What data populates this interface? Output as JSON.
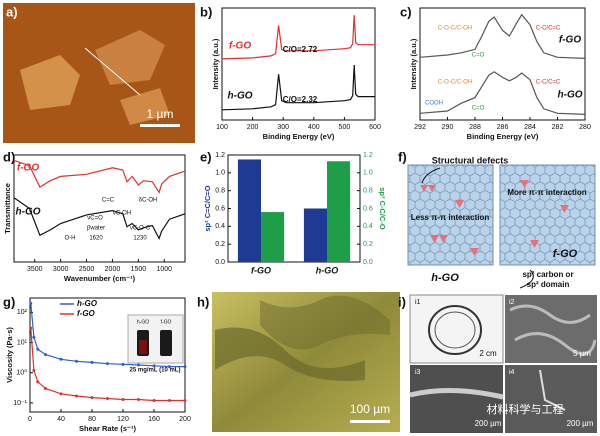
{
  "panels": {
    "a": {
      "label": "a)",
      "scale": "1 µm"
    },
    "b": {
      "label": "b)"
    },
    "c": {
      "label": "c)"
    },
    "d": {
      "label": "d)"
    },
    "e": {
      "label": "e)"
    },
    "f": {
      "label": "f)",
      "texts": [
        "Structural defects",
        "Less π-π interaction",
        "More π-π interaction",
        "h-GO",
        "f-GO",
        "sp² carbon or",
        "sp² domain"
      ]
    },
    "g": {
      "label": "g)",
      "inset": [
        "h-GO",
        "f-GO",
        "25 mg/mL (10 mL)"
      ]
    },
    "h": {
      "label": "h)",
      "scale": "100 µm"
    },
    "i": {
      "label": "i)",
      "subs": [
        "i1",
        "i2",
        "i3",
        "i4"
      ],
      "scales": [
        "2 cm",
        "5 µm",
        "200 µm",
        "200 µm"
      ],
      "watermark": "材料科学与工程"
    }
  },
  "chart_data": [
    {
      "type": "line",
      "xlabel": "Binding Energy (eV)",
      "ylabel": "Intensity (a.u.)",
      "x": [
        100,
        200,
        260,
        275,
        285,
        295,
        310,
        400,
        500,
        520,
        527,
        532,
        537,
        545,
        600
      ],
      "xlim": [
        100,
        600
      ],
      "xticks": [
        100,
        200,
        300,
        400,
        500,
        600
      ],
      "ylim": [
        0,
        11
      ],
      "series": [
        {
          "name": "f-GO",
          "color": "#e03030",
          "values": [
            6,
            6.1,
            6.3,
            6.5,
            9.3,
            6.9,
            6.8,
            6.8,
            7,
            7.1,
            7.5,
            10.3,
            7.6,
            7.4,
            7.4
          ]
        },
        {
          "name": "h-GO",
          "color": "#111111",
          "values": [
            1,
            1.1,
            1.3,
            1.5,
            4.5,
            1.9,
            1.7,
            1.7,
            1.9,
            2,
            2.4,
            5.4,
            2.5,
            2.3,
            2.3
          ]
        }
      ],
      "annotations": [
        "C/O=2.72",
        "C/O=2.32"
      ]
    },
    {
      "type": "line",
      "xlabel": "Binding Energy (eV)",
      "ylabel": "Intensity (a.u.)",
      "x": [
        292,
        290,
        289,
        288,
        287.5,
        287,
        286.6,
        286,
        285.5,
        285,
        284.6,
        284,
        283.5,
        283,
        282,
        280
      ],
      "xlim": [
        292,
        280
      ],
      "xticks": [
        292,
        290,
        288,
        286,
        284,
        282,
        280
      ],
      "ylim": [
        0,
        10
      ],
      "series": [
        {
          "name": "f-GO",
          "color": "#555555",
          "values": [
            5.6,
            5.8,
            6,
            6.3,
            7.5,
            8.8,
            9.2,
            8,
            7.5,
            8.6,
            9.4,
            8.5,
            7,
            6,
            5.6,
            5.5
          ]
        },
        {
          "name": "h-GO",
          "color": "#555555",
          "values": [
            0.6,
            0.8,
            1.5,
            2,
            3,
            4,
            4.3,
            3.8,
            3.5,
            3.8,
            4.2,
            3.6,
            2,
            1,
            0.6,
            0.5
          ]
        }
      ],
      "annotations": [
        "C-O-C/C-OH",
        "C-C/C=C",
        "C=O",
        "C-O-C/C-OH",
        "C-C/C=C",
        "COOH",
        "C=O"
      ]
    },
    {
      "type": "line",
      "xlabel": "Wavenumber (cm⁻¹)",
      "ylabel": "Transmittance",
      "x": [
        3900,
        3600,
        3400,
        3200,
        3000,
        2500,
        2000,
        1800,
        1720,
        1620,
        1500,
        1400,
        1230,
        1100,
        1050,
        900,
        600
      ],
      "xlim": [
        3900,
        600
      ],
      "xticks": [
        3500,
        3000,
        2500,
        2000,
        1500,
        1000
      ],
      "ylim": [
        0,
        10
      ],
      "series": [
        {
          "name": "f-GO",
          "color": "#e03030",
          "values": [
            9.5,
            9,
            7,
            7.6,
            8,
            8.2,
            8.8,
            8.6,
            7.5,
            8,
            7.2,
            7.6,
            7.5,
            6.5,
            7.3,
            8,
            8.5
          ]
        },
        {
          "name": "h-GO",
          "color": "#111111",
          "values": [
            6,
            5,
            2.5,
            3,
            3.6,
            4.4,
            4.8,
            4.5,
            3.3,
            3.6,
            3,
            3.2,
            3.4,
            2.2,
            2.9,
            4,
            4.5
          ]
        }
      ],
      "annotations": [
        "O-H",
        "C=C",
        "δC-OH",
        "νC-OH",
        "νC=O",
        "βwater",
        "1620",
        "νC-O-C",
        "1230"
      ]
    },
    {
      "type": "bar",
      "ylabel": "sp² C=C/C=O",
      "y2label": "sp³ C-C/C-O",
      "categories": [
        "f-GO",
        "h-GO"
      ],
      "ylim": [
        0,
        1.2
      ],
      "yticks": [
        {
          "value": 0,
          "label": "0.0"
        },
        0.2,
        0.4,
        0.6,
        0.8,
        {
          "value": 1,
          "label": "1.0"
        },
        1.2
      ],
      "y2lim": [
        0,
        1.2
      ],
      "y2ticks": [
        {
          "value": 0,
          "label": "0.0"
        },
        0.2,
        0.4,
        0.6,
        0.8,
        {
          "value": 1,
          "label": "1.0"
        },
        1.2
      ],
      "series": [
        {
          "name": "sp² C=C/C=O",
          "color": "#1f3a93",
          "values": [
            1.15,
            0.6
          ]
        },
        {
          "name": "sp³ C-C/C-O",
          "color": "#1e9e48",
          "values": [
            0.56,
            1.13
          ],
          "axis": "y2"
        }
      ]
    },
    {
      "type": "line",
      "xlabel": "Shear Rate (s⁻¹)",
      "ylabel": "Viscosity (Pa·s)",
      "log_y": true,
      "legend": "upper left",
      "x": [
        1,
        5,
        10,
        20,
        40,
        60,
        80,
        100,
        120,
        140,
        160,
        180,
        200
      ],
      "xlim": [
        0,
        200
      ],
      "xticks": [
        0,
        40,
        80,
        120,
        160,
        200
      ],
      "ylim": [
        0.05,
        300
      ],
      "yticks": [
        {
          "value": 0.1,
          "label": "10⁻¹"
        },
        {
          "value": 1,
          "label": "10⁰"
        },
        {
          "value": 10,
          "label": "10¹"
        },
        {
          "value": 100,
          "label": "10²"
        }
      ],
      "series": [
        {
          "name": "h-GO",
          "color": "#2f5fd0",
          "values": [
            200,
            15,
            6,
            4,
            2.8,
            2.4,
            2.2,
            2,
            1.9,
            1.8,
            1.7,
            1.6,
            1.6
          ]
        },
        {
          "name": "f-GO",
          "color": "#e03030",
          "values": [
            30,
            1.2,
            0.5,
            0.3,
            0.2,
            0.17,
            0.15,
            0.14,
            0.13,
            0.13,
            0.12,
            0.12,
            0.12
          ]
        }
      ]
    }
  ]
}
